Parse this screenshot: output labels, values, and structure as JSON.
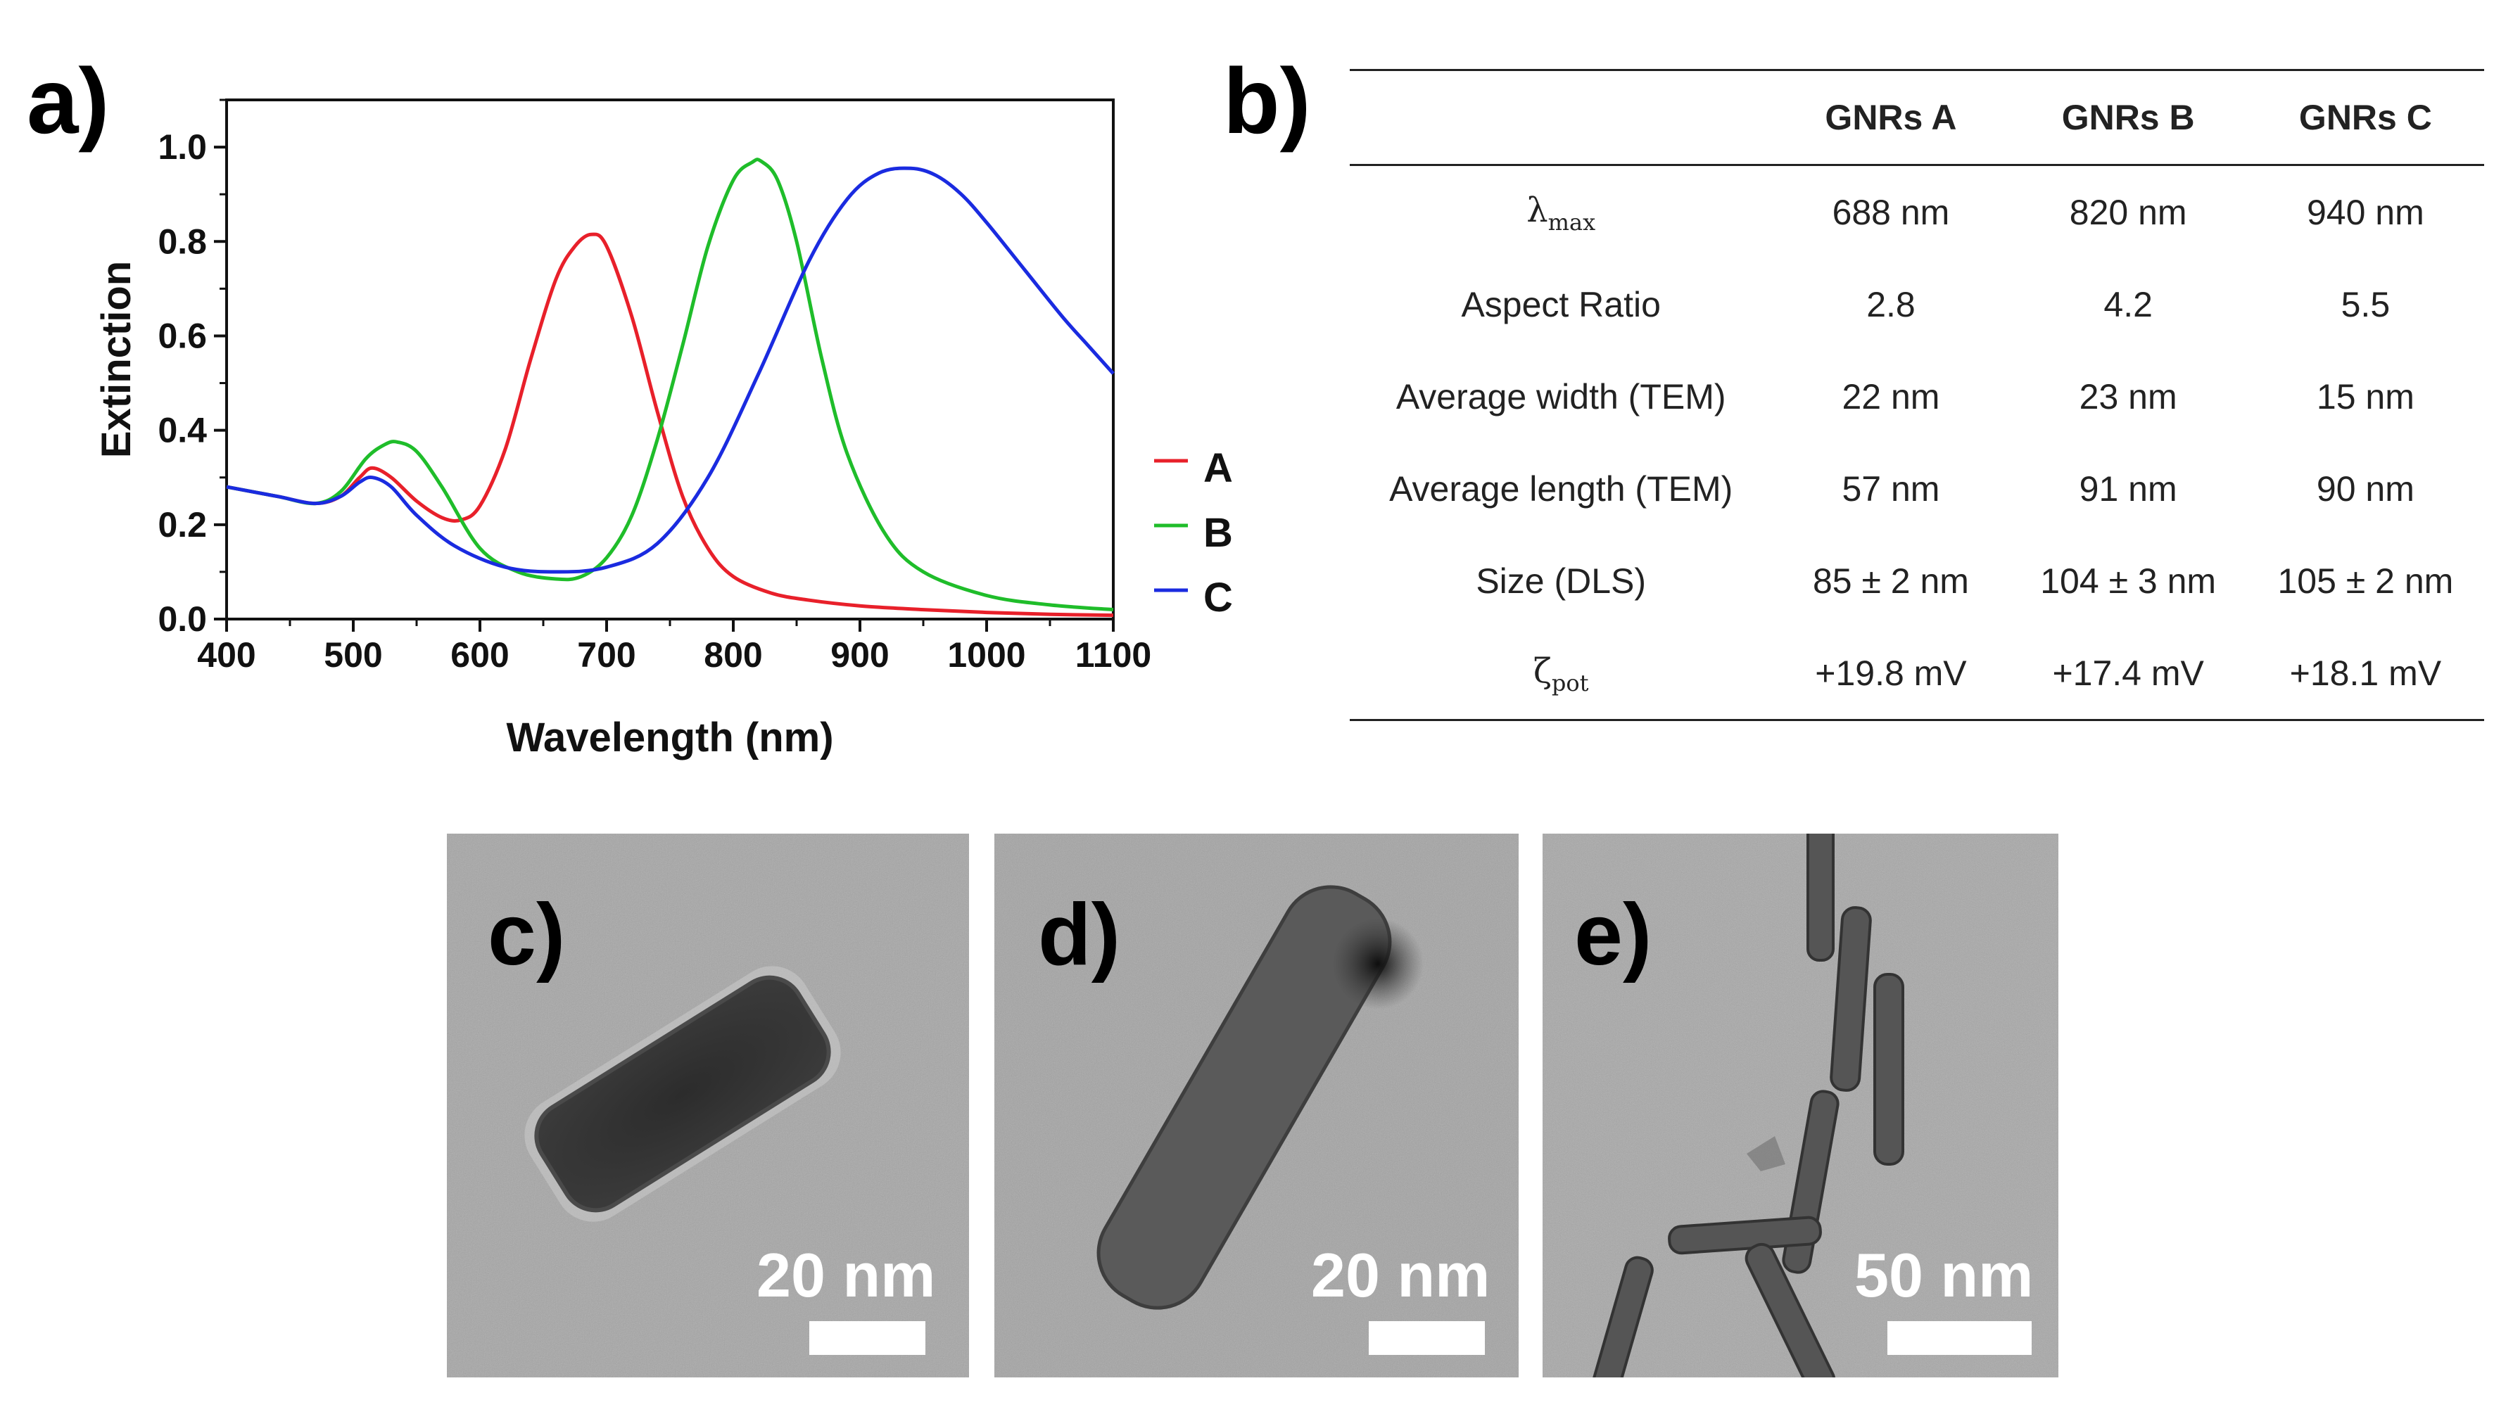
{
  "figure": {
    "panel_a_label": "a)",
    "panel_b_label": "b)",
    "panel_c_label": "c)",
    "panel_d_label": "d)",
    "panel_e_label": "e)"
  },
  "chart_data": {
    "type": "line",
    "xlabel": "Wavelength (nm)",
    "ylabel": "Extinction",
    "xlim": [
      400,
      1100
    ],
    "ylim": [
      0,
      1.1
    ],
    "xticks": [
      "400",
      "500",
      "600",
      "700",
      "800",
      "900",
      "1000",
      "1100"
    ],
    "yticks": [
      "0.0",
      "0.2",
      "0.4",
      "0.6",
      "0.8",
      "1.0"
    ],
    "legend_position": "right",
    "series": [
      {
        "name": "A",
        "color": "#e8202a",
        "x": [
          400,
          440,
          470,
          490,
          505,
          515,
          530,
          550,
          570,
          585,
          600,
          620,
          640,
          660,
          675,
          688,
          700,
          720,
          740,
          760,
          780,
          800,
          830,
          860,
          900,
          950,
          1000,
          1050,
          1100
        ],
        "y": [
          0.28,
          0.26,
          0.245,
          0.26,
          0.3,
          0.32,
          0.3,
          0.25,
          0.215,
          0.21,
          0.24,
          0.36,
          0.55,
          0.72,
          0.79,
          0.815,
          0.79,
          0.64,
          0.44,
          0.26,
          0.15,
          0.09,
          0.055,
          0.04,
          0.028,
          0.02,
          0.014,
          0.01,
          0.008
        ]
      },
      {
        "name": "B",
        "color": "#1fbd2a",
        "x": [
          400,
          440,
          470,
          490,
          510,
          525,
          535,
          550,
          570,
          600,
          630,
          660,
          680,
          700,
          720,
          740,
          760,
          780,
          800,
          815,
          822,
          835,
          850,
          870,
          890,
          920,
          950,
          1000,
          1050,
          1100
        ],
        "y": [
          0.28,
          0.26,
          0.245,
          0.27,
          0.34,
          0.37,
          0.375,
          0.355,
          0.28,
          0.15,
          0.1,
          0.085,
          0.09,
          0.13,
          0.22,
          0.38,
          0.58,
          0.79,
          0.93,
          0.968,
          0.97,
          0.93,
          0.8,
          0.55,
          0.35,
          0.18,
          0.1,
          0.05,
          0.03,
          0.02
        ]
      },
      {
        "name": "C",
        "color": "#1a2be0",
        "x": [
          400,
          440,
          470,
          490,
          505,
          515,
          530,
          550,
          580,
          620,
          660,
          700,
          740,
          780,
          820,
          860,
          890,
          915,
          940,
          960,
          980,
          1000,
          1030,
          1060,
          1080,
          1100
        ],
        "y": [
          0.28,
          0.26,
          0.245,
          0.26,
          0.29,
          0.3,
          0.28,
          0.22,
          0.155,
          0.11,
          0.1,
          0.11,
          0.16,
          0.3,
          0.52,
          0.76,
          0.89,
          0.945,
          0.955,
          0.94,
          0.9,
          0.84,
          0.74,
          0.64,
          0.58,
          0.52
        ]
      }
    ]
  },
  "table": {
    "headers": [
      "",
      "GNRs A",
      "GNRs B",
      "GNRs C"
    ],
    "rows": [
      {
        "label_symbol": "λ",
        "label_sub": "max",
        "values": [
          "688 nm",
          "820 nm",
          "940 nm"
        ]
      },
      {
        "label": "Aspect Ratio",
        "values": [
          "2.8",
          "4.2",
          "5.5"
        ]
      },
      {
        "label": "Average width (TEM)",
        "values": [
          "22 nm",
          "23 nm",
          "15 nm"
        ]
      },
      {
        "label": "Average length (TEM)",
        "values": [
          "57 nm",
          "91 nm",
          "90 nm"
        ]
      },
      {
        "label": "Size (DLS)",
        "values": [
          "85 ± 2 nm",
          "104 ± 3 nm",
          "105 ± 2 nm"
        ]
      },
      {
        "label_symbol": "ζ",
        "label_sub": "pot",
        "values": [
          "+19.8 mV",
          "+17.4 mV",
          "+18.1 mV"
        ]
      }
    ]
  },
  "tem_images": [
    {
      "panel": "c",
      "scale_label": "20 nm"
    },
    {
      "panel": "d",
      "scale_label": "20 nm"
    },
    {
      "panel": "e",
      "scale_label": "50 nm"
    }
  ]
}
